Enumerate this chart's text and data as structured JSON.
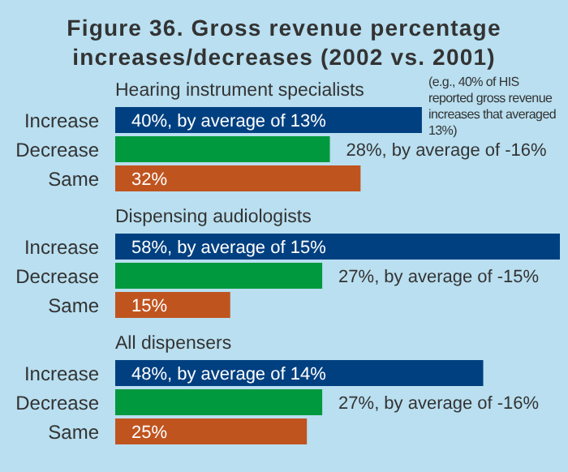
{
  "chart_data": [
    {
      "type": "bar",
      "orientation": "horizontal",
      "title": "Figure 36. Gross revenue percentage increases/decreases (2002 vs. 2001)",
      "subtitle": "Hearing instrument specialists",
      "categories": [
        "Increase",
        "Decrease",
        "Same"
      ],
      "values": [
        40,
        28,
        32
      ],
      "colors": [
        "#004080",
        "#00993d",
        "#c0541f"
      ],
      "value_labels": [
        "40%, by average of 13%",
        "28%, by average of -16%",
        "32%"
      ],
      "annotations": [
        "(e.g., 40% of HIS reported gross revenue increases that averaged 13%)"
      ]
    },
    {
      "type": "bar",
      "orientation": "horizontal",
      "subtitle": "Dispensing audiologists",
      "categories": [
        "Increase",
        "Decrease",
        "Same"
      ],
      "values": [
        58,
        27,
        15
      ],
      "colors": [
        "#004080",
        "#00993d",
        "#c0541f"
      ],
      "value_labels": [
        "58%, by average of 15%",
        "27%, by average of -15%",
        "15%"
      ]
    },
    {
      "type": "bar",
      "orientation": "horizontal",
      "subtitle": "All dispensers",
      "categories": [
        "Increase",
        "Decrease",
        "Same"
      ],
      "values": [
        48,
        27,
        25
      ],
      "colors": [
        "#004080",
        "#00993d",
        "#c0541f"
      ],
      "value_labels": [
        "48%, by average of 14%",
        "27%, by average of -16%",
        "25%"
      ]
    }
  ]
}
